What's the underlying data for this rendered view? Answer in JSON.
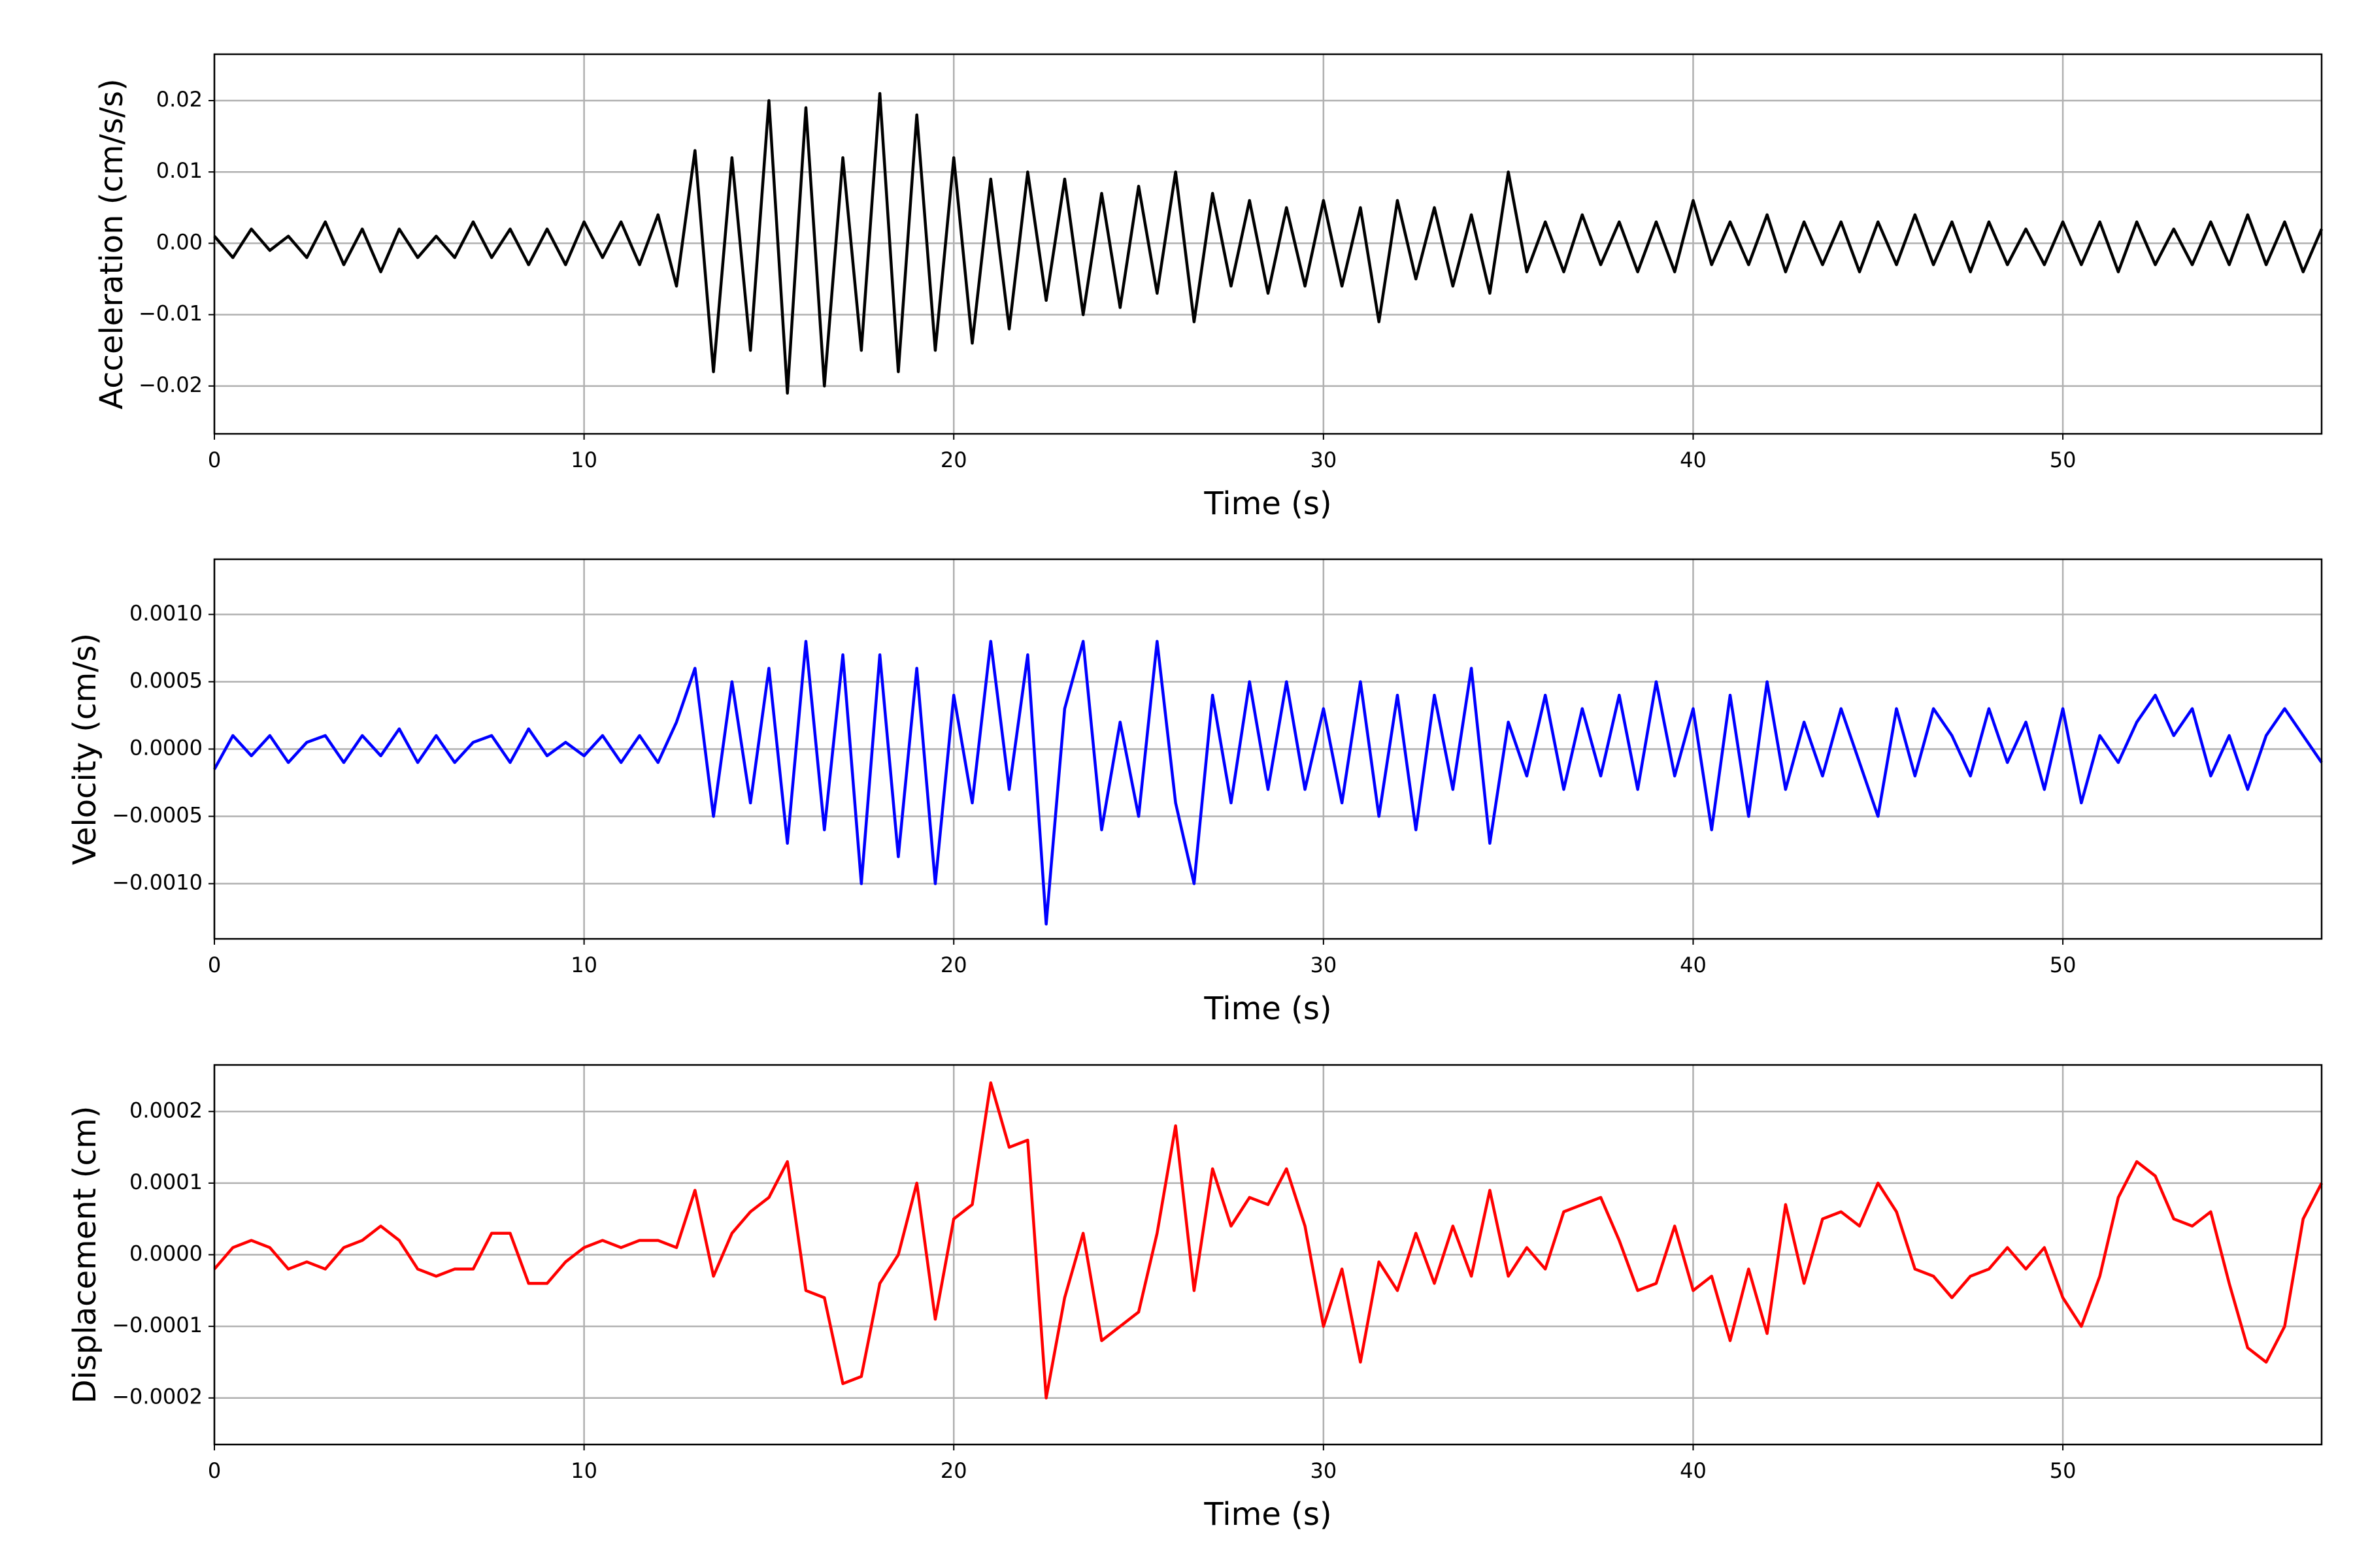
{
  "chart_data": [
    {
      "type": "line",
      "ylabel": "Acceleration (cm/s/s)",
      "xlabel": "Time (s)",
      "color": "#000000",
      "grid": true,
      "xlim": [
        0,
        57
      ],
      "xticks": [
        0,
        10,
        20,
        30,
        40,
        50
      ],
      "ylim": [
        -0.0267,
        0.0265
      ],
      "yticks": [
        {
          "value": -0.02,
          "label": "−0.02"
        },
        {
          "value": -0.01,
          "label": "−0.01"
        },
        {
          "value": 0,
          "label": "0.00"
        },
        {
          "value": 0.01,
          "label": "0.01"
        },
        {
          "value": 0.02,
          "label": "0.02"
        }
      ],
      "x": [
        0,
        0.5,
        1,
        1.5,
        2,
        2.5,
        3,
        3.5,
        4,
        4.5,
        5,
        5.5,
        6,
        6.5,
        7,
        7.5,
        8,
        8.5,
        9,
        9.5,
        10,
        10.5,
        11,
        11.5,
        12,
        12.5,
        13,
        13.5,
        14,
        14.5,
        15,
        15.5,
        16,
        16.5,
        17,
        17.5,
        18,
        18.5,
        19,
        19.5,
        20,
        20.5,
        21,
        21.5,
        22,
        22.5,
        23,
        23.5,
        24,
        24.5,
        25,
        25.5,
        26,
        26.5,
        27,
        27.5,
        28,
        28.5,
        29,
        29.5,
        30,
        30.5,
        31,
        31.5,
        32,
        32.5,
        33,
        33.5,
        34,
        34.5,
        35,
        35.5,
        36,
        36.5,
        37,
        37.5,
        38,
        38.5,
        39,
        39.5,
        40,
        40.5,
        41,
        41.5,
        42,
        42.5,
        43,
        43.5,
        44,
        44.5,
        45,
        45.5,
        46,
        46.5,
        47,
        47.5,
        48,
        48.5,
        49,
        49.5,
        50,
        50.5,
        51,
        51.5,
        52,
        52.5,
        53,
        53.5,
        54,
        54.5,
        55,
        55.5,
        56,
        56.5,
        57
      ],
      "values": [
        0.001,
        -0.002,
        0.002,
        -0.001,
        0.001,
        -0.002,
        0.003,
        -0.003,
        0.002,
        -0.004,
        0.002,
        -0.002,
        0.001,
        -0.002,
        0.003,
        -0.002,
        0.002,
        -0.003,
        0.002,
        -0.003,
        0.003,
        -0.002,
        0.003,
        -0.003,
        0.004,
        -0.006,
        0.013,
        -0.018,
        0.012,
        -0.015,
        0.02,
        -0.021,
        0.019,
        -0.02,
        0.012,
        -0.015,
        0.021,
        -0.018,
        0.018,
        -0.015,
        0.012,
        -0.014,
        0.009,
        -0.012,
        0.01,
        -0.008,
        0.009,
        -0.01,
        0.007,
        -0.009,
        0.008,
        -0.007,
        0.01,
        -0.011,
        0.007,
        -0.006,
        0.006,
        -0.007,
        0.005,
        -0.006,
        0.006,
        -0.006,
        0.005,
        -0.011,
        0.006,
        -0.005,
        0.005,
        -0.006,
        0.004,
        -0.007,
        0.01,
        -0.004,
        0.003,
        -0.004,
        0.004,
        -0.003,
        0.003,
        -0.004,
        0.003,
        -0.004,
        0.006,
        -0.003,
        0.003,
        -0.003,
        0.004,
        -0.004,
        0.003,
        -0.003,
        0.003,
        -0.004,
        0.003,
        -0.003,
        0.004,
        -0.003,
        0.003,
        -0.004,
        0.003,
        -0.003,
        0.002,
        -0.003,
        0.003,
        -0.003,
        0.003,
        -0.004,
        0.003,
        -0.003,
        0.002,
        -0.003,
        0.003,
        -0.003,
        0.004,
        -0.003,
        0.003,
        -0.004,
        0.002
      ]
    },
    {
      "type": "line",
      "ylabel": "Velocity (cm/s)",
      "xlabel": "Time (s)",
      "color": "#0000ff",
      "grid": true,
      "xlim": [
        0,
        57
      ],
      "xticks": [
        0,
        10,
        20,
        30,
        40,
        50
      ],
      "ylim": [
        -0.00141,
        0.00141
      ],
      "yticks": [
        {
          "value": -0.001,
          "label": "−0.0010"
        },
        {
          "value": -0.0005,
          "label": "−0.0005"
        },
        {
          "value": 0,
          "label": "0.0000"
        },
        {
          "value": 0.0005,
          "label": "0.0005"
        },
        {
          "value": 0.001,
          "label": "0.0010"
        }
      ],
      "x": [
        0,
        0.5,
        1,
        1.5,
        2,
        2.5,
        3,
        3.5,
        4,
        4.5,
        5,
        5.5,
        6,
        6.5,
        7,
        7.5,
        8,
        8.5,
        9,
        9.5,
        10,
        10.5,
        11,
        11.5,
        12,
        12.5,
        13,
        13.5,
        14,
        14.5,
        15,
        15.5,
        16,
        16.5,
        17,
        17.5,
        18,
        18.5,
        19,
        19.5,
        20,
        20.5,
        21,
        21.5,
        22,
        22.5,
        23,
        23.5,
        24,
        24.5,
        25,
        25.5,
        26,
        26.5,
        27,
        27.5,
        28,
        28.5,
        29,
        29.5,
        30,
        30.5,
        31,
        31.5,
        32,
        32.5,
        33,
        33.5,
        34,
        34.5,
        35,
        35.5,
        36,
        36.5,
        37,
        37.5,
        38,
        38.5,
        39,
        39.5,
        40,
        40.5,
        41,
        41.5,
        42,
        42.5,
        43,
        43.5,
        44,
        44.5,
        45,
        45.5,
        46,
        46.5,
        47,
        47.5,
        48,
        48.5,
        49,
        49.5,
        50,
        50.5,
        51,
        51.5,
        52,
        52.5,
        53,
        53.5,
        54,
        54.5,
        55,
        55.5,
        56,
        56.5,
        57
      ],
      "values": [
        -0.00015,
        0.0001,
        -5e-05,
        0.0001,
        -0.0001,
        5e-05,
        0.0001,
        -0.0001,
        0.0001,
        -5e-05,
        0.00015,
        -0.0001,
        0.0001,
        -0.0001,
        5e-05,
        0.0001,
        -0.0001,
        0.00015,
        -5e-05,
        5e-05,
        -5e-05,
        0.0001,
        -0.0001,
        0.0001,
        -0.0001,
        0.0002,
        0.0006,
        -0.0005,
        0.0005,
        -0.0004,
        0.0006,
        -0.0007,
        0.0008,
        -0.0006,
        0.0007,
        -0.001,
        0.0007,
        -0.0008,
        0.0006,
        -0.001,
        0.0004,
        -0.0004,
        0.0008,
        -0.0003,
        0.0007,
        -0.0013,
        0.0003,
        0.0008,
        -0.0006,
        0.0002,
        -0.0005,
        0.0008,
        -0.0004,
        -0.001,
        0.0004,
        -0.0004,
        0.0005,
        -0.0003,
        0.0005,
        -0.0003,
        0.0003,
        -0.0004,
        0.0005,
        -0.0005,
        0.0004,
        -0.0006,
        0.0004,
        -0.0003,
        0.0006,
        -0.0007,
        0.0002,
        -0.0002,
        0.0004,
        -0.0003,
        0.0003,
        -0.0002,
        0.0004,
        -0.0003,
        0.0005,
        -0.0002,
        0.0003,
        -0.0006,
        0.0004,
        -0.0005,
        0.0005,
        -0.0003,
        0.0002,
        -0.0002,
        0.0003,
        -0.0001,
        -0.0005,
        0.0003,
        -0.0002,
        0.0003,
        0.0001,
        -0.0002,
        0.0003,
        -0.0001,
        0.0002,
        -0.0003,
        0.0003,
        -0.0004,
        0.0001,
        -0.0001,
        0.0002,
        0.0004,
        0.0001,
        0.0003,
        -0.0002,
        0.0001,
        -0.0003,
        0.0001,
        0.0003,
        0.0001,
        -0.0001
      ]
    },
    {
      "type": "line",
      "ylabel": "Displacement (cm)",
      "xlabel": "Time (s)",
      "color": "#ff0000",
      "grid": true,
      "xlim": [
        0,
        57
      ],
      "xticks": [
        0,
        10,
        20,
        30,
        40,
        50
      ],
      "ylim": [
        -0.000265,
        0.000265
      ],
      "yticks": [
        {
          "value": -0.0002,
          "label": "−0.0002"
        },
        {
          "value": -0.0001,
          "label": "−0.0001"
        },
        {
          "value": 0,
          "label": "0.0000"
        },
        {
          "value": 0.0001,
          "label": "0.0001"
        },
        {
          "value": 0.0002,
          "label": "0.0002"
        }
      ],
      "x": [
        0,
        0.5,
        1,
        1.5,
        2,
        2.5,
        3,
        3.5,
        4,
        4.5,
        5,
        5.5,
        6,
        6.5,
        7,
        7.5,
        8,
        8.5,
        9,
        9.5,
        10,
        10.5,
        11,
        11.5,
        12,
        12.5,
        13,
        13.5,
        14,
        14.5,
        15,
        15.5,
        16,
        16.5,
        17,
        17.5,
        18,
        18.5,
        19,
        19.5,
        20,
        20.5,
        21,
        21.5,
        22,
        22.5,
        23,
        23.5,
        24,
        24.5,
        25,
        25.5,
        26,
        26.5,
        27,
        27.5,
        28,
        28.5,
        29,
        29.5,
        30,
        30.5,
        31,
        31.5,
        32,
        32.5,
        33,
        33.5,
        34,
        34.5,
        35,
        35.5,
        36,
        36.5,
        37,
        37.5,
        38,
        38.5,
        39,
        39.5,
        40,
        40.5,
        41,
        41.5,
        42,
        42.5,
        43,
        43.5,
        44,
        44.5,
        45,
        45.5,
        46,
        46.5,
        47,
        47.5,
        48,
        48.5,
        49,
        49.5,
        50,
        50.5,
        51,
        51.5,
        52,
        52.5,
        53,
        53.5,
        54,
        54.5,
        55,
        55.5,
        56,
        56.5,
        57
      ],
      "values": [
        -2e-05,
        1e-05,
        2e-05,
        1e-05,
        -2e-05,
        -1e-05,
        -2e-05,
        1e-05,
        2e-05,
        4e-05,
        2e-05,
        -2e-05,
        -3e-05,
        -2e-05,
        -2e-05,
        3e-05,
        3e-05,
        -4e-05,
        -4e-05,
        -1e-05,
        1e-05,
        2e-05,
        1e-05,
        2e-05,
        2e-05,
        1e-05,
        9e-05,
        -3e-05,
        3e-05,
        6e-05,
        8e-05,
        0.00013,
        -5e-05,
        -6e-05,
        -0.00018,
        -0.00017,
        -4e-05,
        0.0,
        0.0001,
        -9e-05,
        5e-05,
        7e-05,
        0.00024,
        0.00015,
        0.00016,
        -0.0002,
        -6e-05,
        3e-05,
        -0.00012,
        -0.0001,
        -8e-05,
        3e-05,
        0.00018,
        -5e-05,
        0.00012,
        4e-05,
        8e-05,
        7e-05,
        0.00012,
        4e-05,
        -0.0001,
        -2e-05,
        -0.00015,
        -1e-05,
        -5e-05,
        3e-05,
        -4e-05,
        4e-05,
        -3e-05,
        9e-05,
        -3e-05,
        1e-05,
        -2e-05,
        6e-05,
        7e-05,
        8e-05,
        2e-05,
        -5e-05,
        -4e-05,
        4e-05,
        -5e-05,
        -3e-05,
        -0.00012,
        -2e-05,
        -0.00011,
        7e-05,
        -4e-05,
        5e-05,
        6e-05,
        4e-05,
        0.0001,
        6e-05,
        -2e-05,
        -3e-05,
        -6e-05,
        -3e-05,
        -2e-05,
        1e-05,
        -2e-05,
        1e-05,
        -6e-05,
        -0.0001,
        -3e-05,
        8e-05,
        0.00013,
        0.00011,
        5e-05,
        4e-05,
        6e-05,
        -4e-05,
        -0.00013,
        -0.00015,
        -0.0001,
        5e-05,
        0.0001
      ]
    }
  ]
}
